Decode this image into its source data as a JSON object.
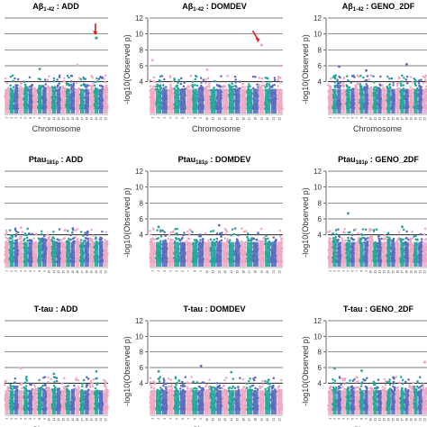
{
  "figure": {
    "panels": [
      {
        "title_main": "Aβ",
        "title_sub": "1-42",
        "title_rest": " : ADD",
        "show_yaxis": false,
        "show_xlabel": true,
        "hits": [
          {
            "chr": 20,
            "y": 9.5,
            "arrow": true
          }
        ],
        "extra_points": [
          {
            "chr": 16,
            "y": 6.1
          },
          {
            "chr": 8,
            "y": 5.6
          }
        ]
      },
      {
        "title_main": "Aβ",
        "title_sub": "1-42",
        "title_rest": " : DOMDEV",
        "show_yaxis": true,
        "show_xlabel": true,
        "hits": [
          {
            "chr": 19,
            "y": 8.6,
            "arrow": true
          }
        ],
        "extra_points": [
          {
            "chr": 1,
            "y": 6.7
          },
          {
            "chr": 10,
            "y": 5.5
          },
          {
            "chr": 22,
            "y": 6.0
          }
        ]
      },
      {
        "title_main": "Aβ",
        "title_sub": "1-42",
        "title_rest": " : GENO_2DF",
        "show_yaxis": true,
        "show_xlabel": true,
        "hits": [],
        "extra_points": [
          {
            "chr": 3,
            "y": 5.9
          },
          {
            "chr": 9,
            "y": 5.4
          },
          {
            "chr": 18,
            "y": 6.2
          }
        ]
      },
      {
        "title_main": "Ptau",
        "title_sub": "181p",
        "title_rest": " : ADD",
        "show_yaxis": false,
        "show_xlabel": false,
        "hits": [],
        "extra_points": [
          {
            "chr": 4,
            "y": 4.9
          },
          {
            "chr": 15,
            "y": 4.8
          }
        ]
      },
      {
        "title_main": "Ptau",
        "title_sub": "181p",
        "title_rest": " : DOMDEV",
        "show_yaxis": true,
        "show_xlabel": false,
        "hits": [],
        "extra_points": [
          {
            "chr": 2,
            "y": 5.0
          },
          {
            "chr": 12,
            "y": 5.2
          }
        ]
      },
      {
        "title_main": "Ptau",
        "title_sub": "181p",
        "title_rest": " : GENO_2DF",
        "show_yaxis": true,
        "show_xlabel": false,
        "hits": [],
        "extra_points": [
          {
            "chr": 5,
            "y": 6.7
          },
          {
            "chr": 17,
            "y": 5.0
          }
        ]
      },
      {
        "title_main": "T-tau",
        "title_sub": "",
        "title_rest": " : ADD",
        "show_yaxis": false,
        "show_xlabel": true,
        "hits": [],
        "extra_points": [
          {
            "chr": 4,
            "y": 5.9
          },
          {
            "chr": 11,
            "y": 5.2
          },
          {
            "chr": 20,
            "y": 5.5
          }
        ]
      },
      {
        "title_main": "T-tau",
        "title_sub": "",
        "title_rest": " : DOMDEV",
        "show_yaxis": true,
        "show_xlabel": true,
        "hits": [],
        "extra_points": [
          {
            "chr": 2,
            "y": 5.5
          },
          {
            "chr": 9,
            "y": 6.2
          },
          {
            "chr": 14,
            "y": 5.4
          }
        ]
      },
      {
        "title_main": "T-tau",
        "title_sub": "",
        "title_rest": " : GENO_2DF",
        "show_yaxis": true,
        "show_xlabel": true,
        "hits": [
          {
            "chr": 22,
            "y": 6.7,
            "arrow": false
          }
        ],
        "extra_points": [
          {
            "chr": 2,
            "y": 5.9
          },
          {
            "chr": 8,
            "y": 5.6
          }
        ]
      }
    ]
  },
  "chart_data": {
    "type": "scatter",
    "layout": "3x3 grid of Manhattan plots",
    "ylabel": "-log10(Observed p)",
    "xlabel": "Chromosome",
    "ylim": [
      0,
      12
    ],
    "yticks": [
      4,
      6,
      8,
      10,
      12
    ],
    "chromosomes": [
      "1",
      "2",
      "3",
      "4",
      "5",
      "6",
      "7",
      "8",
      "9",
      "10",
      "11",
      "12",
      "13",
      "14",
      "15",
      "16",
      "17",
      "18",
      "19",
      "20",
      "21",
      "22"
    ],
    "chromosome_colors": [
      "#f2a7c0",
      "#26a69a",
      "#5c6bc0"
    ],
    "reference_lines": [
      4,
      6,
      8,
      10,
      12
    ],
    "threshold_line": 4,
    "arrow_color": "#e41a1c"
  }
}
